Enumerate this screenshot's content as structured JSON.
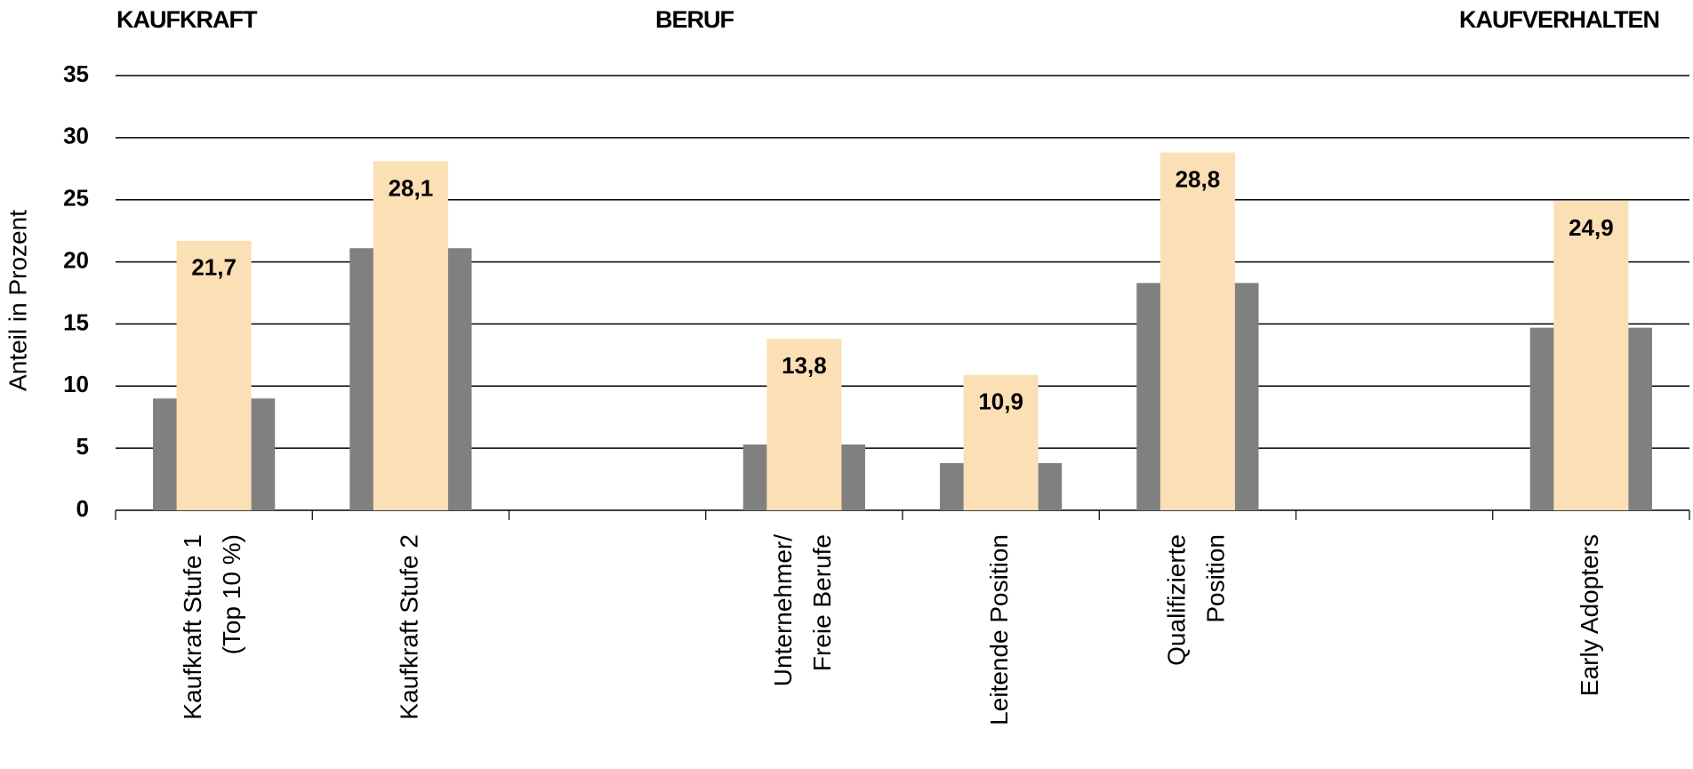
{
  "chart_data": {
    "type": "bar",
    "annotations": [
      "KAUFKRAFT",
      "BERUF",
      "KAUFVERHALTEN"
    ],
    "y_label": "Anteil in Prozent",
    "categories": [
      [
        "Kaufkraft Stufe 1",
        "(Top 10 %)"
      ],
      [
        "Kaufkraft Stufe 2"
      ],
      null,
      [
        "Unternehmer/",
        "Freie Berufe"
      ],
      [
        "Leitende Position"
      ],
      [
        "Qualifizierte",
        "Position"
      ],
      null,
      [
        "Early Adopters"
      ]
    ],
    "series": [
      {
        "color": "#808080",
        "values": [
          9,
          21.1,
          null,
          5.3,
          3.8,
          18.3,
          null,
          14.7
        ]
      },
      {
        "color": "#fbdfb5",
        "values": [
          21.7,
          28.1,
          null,
          13.8,
          10.9,
          28.8,
          null,
          24.9
        ],
        "value_labels": [
          "21,7",
          "28,1",
          null,
          "13,8",
          "10,9",
          "28,8",
          null,
          "24,9"
        ]
      }
    ],
    "ylim": [
      0,
      35
    ],
    "yticks": [
      0,
      5,
      10,
      15,
      20,
      25,
      30,
      35
    ],
    "grid": true
  }
}
